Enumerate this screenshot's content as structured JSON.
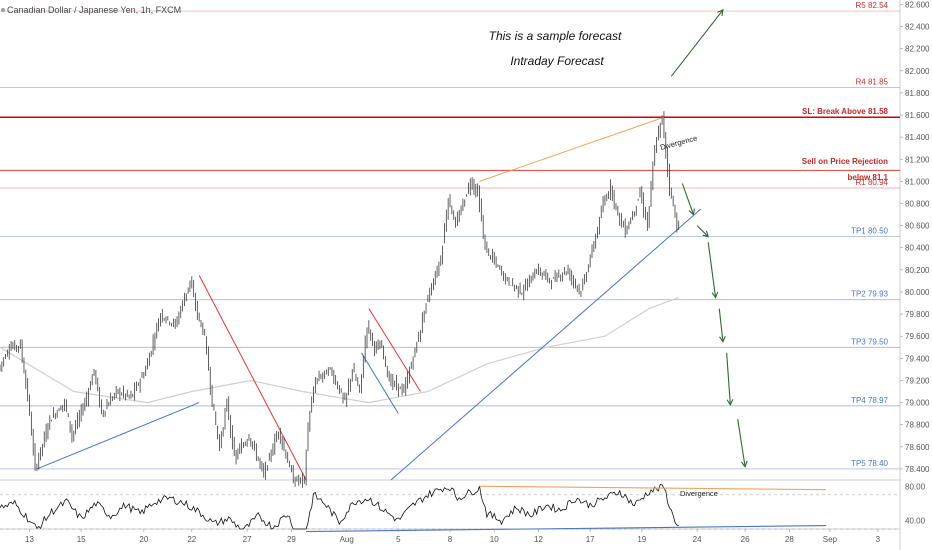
{
  "header": {
    "symbol_title": "Canadian Dollar / Japanese Yen, 1h, FXCM"
  },
  "annotations": {
    "title_line1": "This is a sample forecast",
    "title_line2": "Intraday Forecast",
    "divergence_price": "Divergence",
    "divergence_osc": "Divergence",
    "sell_line1": "Sell on Price Rejection",
    "sell_line2": "below 81.1"
  },
  "levels": [
    {
      "id": "r5",
      "label": "R5 82.54",
      "value": 82.54,
      "color": "#ef9a9a",
      "label_class": "lvl-red",
      "width": 0.7
    },
    {
      "id": "r4",
      "label": "R4 81.85",
      "value": 81.85,
      "color": "#ef9a9a",
      "label_class": "lvl-red",
      "width": 0.7
    },
    {
      "id": "sl",
      "label": "SL: Break Above 81.58",
      "value": 81.58,
      "color": "#d50000",
      "label_class": "lvl-bold",
      "width": 1.5
    },
    {
      "id": "sell",
      "label": "",
      "value": 81.1,
      "color": "#e53935",
      "label_class": "lvl-bold",
      "width": 1
    },
    {
      "id": "r1",
      "label": "R1 80.94",
      "value": 80.94,
      "color": "#ef9a9a",
      "label_class": "lvl-red",
      "width": 0.7
    },
    {
      "id": "tp1",
      "label": "TP1 80.50",
      "value": 80.5,
      "color": "#90a9d8",
      "label_class": "lvl-blue",
      "width": 0.7
    },
    {
      "id": "tp2",
      "label": "TP2 79.93",
      "value": 79.93,
      "color": "#90a9d8",
      "label_class": "lvl-blue",
      "width": 0.7
    },
    {
      "id": "tp3",
      "label": "TP3 79.50",
      "value": 79.5,
      "color": "#90a9d8",
      "label_class": "lvl-blue",
      "width": 0.7
    },
    {
      "id": "tp4",
      "label": "TP4 78.97",
      "value": 78.97,
      "color": "#90a9d8",
      "label_class": "lvl-blue",
      "width": 0.7
    },
    {
      "id": "tp5",
      "label": "TP5 78.40",
      "value": 78.4,
      "color": "#90a9d8",
      "label_class": "lvl-blue",
      "width": 0.7
    }
  ],
  "colors": {
    "candle": "#3a3a3a",
    "ma": "#cfcfcf",
    "trend_up": "#4a76c6",
    "trend_down": "#e53935",
    "divergence": "#f5a25d",
    "forecast_arrow": "#2e6b2e",
    "oscillator": "#111111"
  },
  "chart_data": [
    {
      "type": "candlestick",
      "title": "Canadian Dollar / Japanese Yen, 1h, FXCM",
      "ylim": [
        78.3,
        82.64
      ],
      "y_ticks": [
        "82.600",
        "82.400",
        "82.200",
        "82.000",
        "81.800",
        "81.600",
        "81.400",
        "81.200",
        "81.000",
        "80.800",
        "80.600",
        "80.400",
        "80.200",
        "80.000",
        "79.800",
        "79.600",
        "79.400",
        "79.200",
        "79.000",
        "78.800",
        "78.600",
        "78.400"
      ],
      "y_tick_values": [
        82.6,
        82.4,
        82.2,
        82.0,
        81.8,
        81.6,
        81.4,
        81.2,
        81.0,
        80.8,
        80.6,
        80.4,
        80.2,
        80.0,
        79.8,
        79.6,
        79.4,
        79.2,
        79.0,
        78.8,
        78.6,
        78.4
      ],
      "x_ticks": [
        "13",
        "15",
        "20",
        "22",
        "27",
        "29",
        "Aug",
        "5",
        "8",
        "10",
        "12",
        "17",
        "19",
        "24",
        "26",
        "28",
        "Sep",
        "3"
      ],
      "x_tick_pos": [
        4,
        11,
        19.5,
        26,
        33.5,
        39.5,
        47,
        54,
        61,
        67,
        73,
        80,
        87,
        94.5,
        101,
        107,
        112.5,
        119
      ],
      "price_path": [
        [
          0,
          79.3
        ],
        [
          1.5,
          79.5
        ],
        [
          3,
          79.52
        ],
        [
          4,
          79.05
        ],
        [
          5,
          78.4
        ],
        [
          7,
          78.85
        ],
        [
          9,
          79.0
        ],
        [
          10,
          78.7
        ],
        [
          12,
          79.05
        ],
        [
          13,
          79.3
        ],
        [
          14,
          78.9
        ],
        [
          16,
          79.1
        ],
        [
          18,
          79.05
        ],
        [
          20,
          79.3
        ],
        [
          22,
          79.8
        ],
        [
          24,
          79.7
        ],
        [
          26,
          80.1
        ],
        [
          27,
          79.8
        ],
        [
          28,
          79.6
        ],
        [
          29,
          79.0
        ],
        [
          30,
          78.6
        ],
        [
          31,
          79.0
        ],
        [
          32,
          78.5
        ],
        [
          34,
          78.7
        ],
        [
          36,
          78.35
        ],
        [
          38,
          78.75
        ],
        [
          40,
          78.3
        ],
        [
          41.5,
          78.3
        ],
        [
          42,
          78.8
        ],
        [
          43,
          79.2
        ],
        [
          45,
          79.3
        ],
        [
          47,
          79.0
        ],
        [
          48,
          79.3
        ],
        [
          49,
          79.1
        ],
        [
          50,
          79.7
        ],
        [
          51,
          79.5
        ],
        [
          52,
          79.5
        ],
        [
          53,
          79.2
        ],
        [
          55,
          79.1
        ],
        [
          57,
          79.6
        ],
        [
          58,
          79.9
        ],
        [
          60,
          80.3
        ],
        [
          61,
          80.85
        ],
        [
          62,
          80.6
        ],
        [
          63,
          80.8
        ],
        [
          64,
          81.0
        ],
        [
          65,
          80.9
        ],
        [
          66,
          80.4
        ],
        [
          67,
          80.3
        ],
        [
          69,
          80.1
        ],
        [
          71,
          80.0
        ],
        [
          73,
          80.2
        ],
        [
          75,
          80.1
        ],
        [
          77,
          80.2
        ],
        [
          79,
          80.0
        ],
        [
          81,
          80.5
        ],
        [
          82,
          80.8
        ],
        [
          83,
          80.95
        ],
        [
          84,
          80.7
        ],
        [
          85,
          80.55
        ],
        [
          86,
          80.7
        ],
        [
          87,
          80.9
        ],
        [
          88,
          80.6
        ],
        [
          89,
          81.3
        ],
        [
          90,
          81.58
        ],
        [
          91,
          80.95
        ],
        [
          92,
          80.6
        ]
      ],
      "ma_path": [
        [
          0,
          79.5
        ],
        [
          10,
          79.1
        ],
        [
          20,
          79.0
        ],
        [
          26,
          79.1
        ],
        [
          34,
          79.2
        ],
        [
          41,
          79.1
        ],
        [
          50,
          79.0
        ],
        [
          58,
          79.1
        ],
        [
          66,
          79.35
        ],
        [
          74,
          79.5
        ],
        [
          82,
          79.6
        ],
        [
          88,
          79.85
        ],
        [
          92,
          79.95
        ]
      ],
      "trendlines": [
        {
          "kind": "up",
          "from": [
            5,
            78.4
          ],
          "to": [
            27,
            79.0
          ]
        },
        {
          "kind": "down",
          "from": [
            27,
            80.15
          ],
          "to": [
            41.5,
            78.3
          ]
        },
        {
          "kind": "down",
          "from": [
            50,
            79.85
          ],
          "to": [
            57,
            79.1
          ]
        },
        {
          "kind": "up",
          "from": [
            49,
            79.45
          ],
          "to": [
            54,
            78.9
          ]
        },
        {
          "kind": "up",
          "from": [
            53,
            78.3
          ],
          "to": [
            95,
            80.75
          ]
        },
        {
          "kind": "divergence",
          "from": [
            65,
            81.0
          ],
          "to": [
            90,
            81.58
          ]
        }
      ],
      "forecast_arrows": [
        {
          "from": [
            91,
            81.95
          ],
          "to": [
            98,
            82.55
          ]
        },
        {
          "from": [
            92.5,
            80.98
          ],
          "to": [
            94,
            80.7
          ]
        },
        {
          "from": [
            94.5,
            80.6
          ],
          "to": [
            96,
            80.5
          ]
        },
        {
          "from": [
            96,
            80.45
          ],
          "to": [
            97,
            79.95
          ]
        },
        {
          "from": [
            97.5,
            79.85
          ],
          "to": [
            98,
            79.55
          ]
        },
        {
          "from": [
            98.5,
            79.45
          ],
          "to": [
            99,
            78.98
          ]
        },
        {
          "from": [
            100,
            78.85
          ],
          "to": [
            101,
            78.42
          ]
        }
      ]
    },
    {
      "type": "line",
      "ylim": [
        30,
        85
      ],
      "y_ticks": [
        "80.00",
        "40.00"
      ],
      "y_tick_values": [
        80,
        40
      ],
      "reference_levels": [
        70,
        30
      ],
      "osc_path": [
        [
          0,
          55
        ],
        [
          2,
          60
        ],
        [
          4,
          40
        ],
        [
          5,
          30
        ],
        [
          7,
          50
        ],
        [
          9,
          62
        ],
        [
          11,
          42
        ],
        [
          13,
          60
        ],
        [
          15,
          45
        ],
        [
          17,
          58
        ],
        [
          19,
          48
        ],
        [
          21,
          62
        ],
        [
          23,
          66
        ],
        [
          25,
          60
        ],
        [
          27,
          50
        ],
        [
          29,
          36
        ],
        [
          31,
          42
        ],
        [
          33,
          28
        ],
        [
          35,
          45
        ],
        [
          37,
          32
        ],
        [
          39,
          48
        ],
        [
          40,
          27
        ],
        [
          41.5,
          27
        ],
        [
          42.5,
          70
        ],
        [
          44,
          60
        ],
        [
          46,
          38
        ],
        [
          48,
          62
        ],
        [
          50,
          66
        ],
        [
          52,
          52
        ],
        [
          54,
          40
        ],
        [
          56,
          58
        ],
        [
          58,
          70
        ],
        [
          60,
          78
        ],
        [
          61,
          79
        ],
        [
          62,
          66
        ],
        [
          64,
          74
        ],
        [
          65,
          78
        ],
        [
          66,
          48
        ],
        [
          68,
          40
        ],
        [
          70,
          55
        ],
        [
          72,
          46
        ],
        [
          74,
          58
        ],
        [
          76,
          52
        ],
        [
          78,
          66
        ],
        [
          80,
          58
        ],
        [
          82,
          66
        ],
        [
          84,
          74
        ],
        [
          86,
          58
        ],
        [
          88,
          74
        ],
        [
          90,
          79
        ],
        [
          91,
          50
        ],
        [
          92,
          32
        ]
      ],
      "trendlines": [
        {
          "kind": "up",
          "from": [
            41.5,
            27
          ],
          "to": [
            112,
            34
          ]
        },
        {
          "kind": "divergence",
          "from": [
            65,
            80
          ],
          "to": [
            112,
            76
          ]
        }
      ]
    }
  ]
}
